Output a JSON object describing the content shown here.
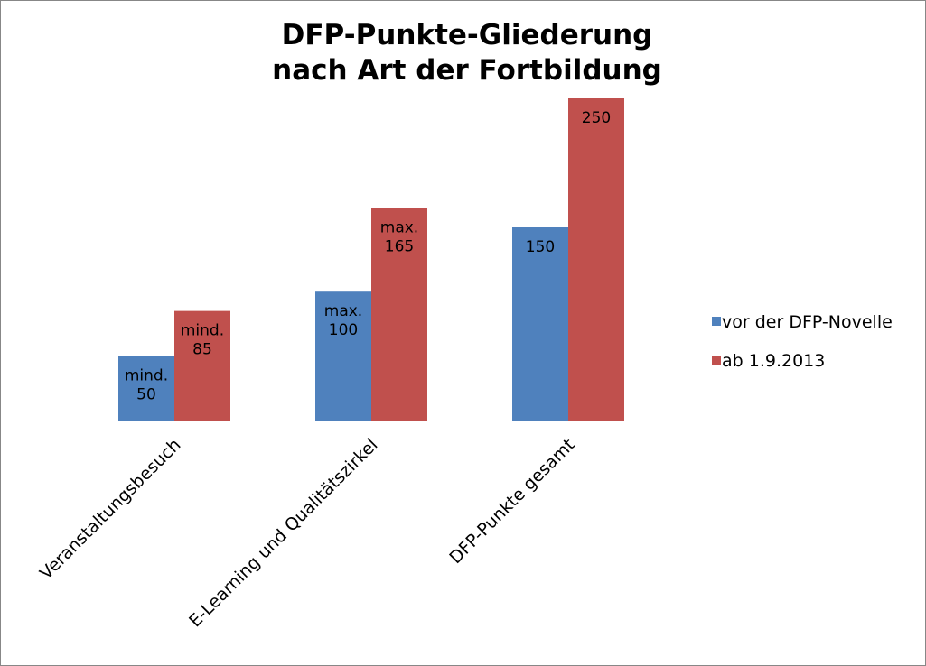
{
  "chart_data": {
    "type": "bar",
    "title_lines": [
      "DFP-Punkte-Gliederung",
      "nach Art der Fortbildung"
    ],
    "categories": [
      "Veranstaltungsbesuch",
      "E-Learning und Qualitätszirkel",
      "DFP-Punkte gesamt"
    ],
    "series": [
      {
        "name": "vor der DFP-Novelle",
        "color": "#4f81bd",
        "values": [
          50,
          100,
          150
        ],
        "data_labels": [
          [
            "mind.",
            "50"
          ],
          [
            "max.",
            "100"
          ],
          [
            "150"
          ]
        ]
      },
      {
        "name": "ab 1.9.2013",
        "color": "#c0504d",
        "values": [
          85,
          165,
          250
        ],
        "data_labels": [
          [
            "mind.",
            "85"
          ],
          [
            "max.",
            "165"
          ],
          [
            "250"
          ]
        ]
      }
    ],
    "ylim": [
      0,
      250
    ],
    "grid": false,
    "legend_position": "right"
  }
}
